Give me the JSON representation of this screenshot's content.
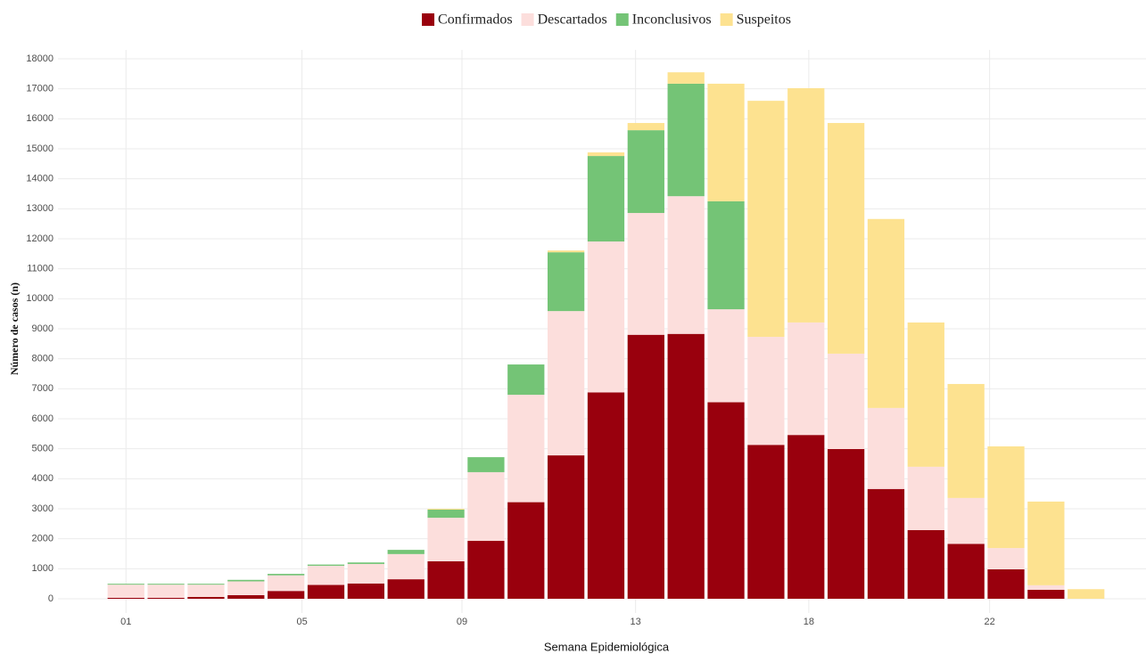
{
  "chart_data": {
    "type": "stacked-bar",
    "x": [
      1,
      2,
      3,
      4,
      5,
      6,
      7,
      8,
      9,
      10,
      11,
      12,
      13,
      14,
      15,
      16,
      17,
      18,
      19,
      20,
      21,
      22,
      23,
      24,
      25
    ],
    "xlim": [
      -0.7,
      26.5
    ],
    "xticks": [
      {
        "value": 1,
        "label": "01"
      },
      {
        "value": 5.4,
        "label": "05"
      },
      {
        "value": 9.4,
        "label": "09"
      },
      {
        "value": 13.74,
        "label": "13"
      },
      {
        "value": 18.07,
        "label": "18"
      },
      {
        "value": 22.59,
        "label": "22"
      }
    ],
    "ylim": [
      0,
      18000
    ],
    "yticks": [
      0,
      1000,
      2000,
      3000,
      4000,
      5000,
      6000,
      7000,
      8000,
      9000,
      10000,
      11000,
      12000,
      13000,
      14000,
      15000,
      16000,
      17000,
      18000
    ],
    "x_label": "Semana Epidemiológica",
    "y_label": "Número de casos (n)",
    "grid": true,
    "legend": "top",
    "series": [
      {
        "name": "Confirmados",
        "color": "#99000d",
        "values": [
          30,
          30,
          60,
          120,
          260,
          460,
          510,
          650,
          1250,
          1930,
          3220,
          4780,
          6880,
          8800,
          8830,
          6550,
          5130,
          5460,
          4990,
          3660,
          2290,
          1830,
          980,
          300,
          0
        ]
      },
      {
        "name": "Descartados",
        "color": "#fcdedc",
        "values": [
          440,
          440,
          410,
          460,
          520,
          640,
          650,
          840,
          1450,
          2290,
          3580,
          4810,
          5030,
          4060,
          4590,
          3100,
          3600,
          3750,
          3180,
          2700,
          2110,
          1530,
          710,
          150,
          0
        ]
      },
      {
        "name": "Inconclusivos",
        "color": "#74c476",
        "values": [
          30,
          30,
          30,
          50,
          50,
          40,
          50,
          140,
          270,
          500,
          1010,
          1960,
          2850,
          2760,
          3750,
          3600,
          0,
          0,
          0,
          0,
          0,
          0,
          0,
          0,
          0
        ]
      },
      {
        "name": "Suspeitos",
        "color": "#fde290",
        "values": [
          0,
          0,
          0,
          0,
          0,
          0,
          0,
          0,
          30,
          0,
          0,
          60,
          120,
          240,
          380,
          3920,
          7870,
          7810,
          7690,
          6300,
          4810,
          3800,
          3390,
          2790,
          320
        ]
      }
    ]
  }
}
